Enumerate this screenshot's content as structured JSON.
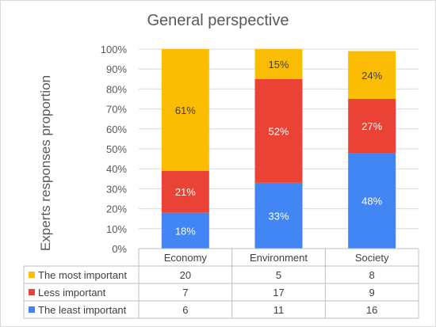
{
  "chart_data": {
    "type": "bar",
    "stacked": "percent",
    "title": "General perspective",
    "ylabel": "Experts responses proportion",
    "xlabel": "",
    "ylim": [
      0,
      100
    ],
    "yticks": [
      "0%",
      "10%",
      "20%",
      "30%",
      "40%",
      "50%",
      "60%",
      "70%",
      "80%",
      "90%",
      "100%"
    ],
    "grid": true,
    "categories": [
      "Economy",
      "Environment",
      "Society"
    ],
    "series": [
      {
        "name": "The least important",
        "color": "#4285f4",
        "counts": [
          6,
          11,
          16
        ],
        "percent": [
          18,
          33,
          48
        ],
        "labels": [
          "18%",
          "33%",
          "48%"
        ]
      },
      {
        "name": "Less important",
        "color": "#ea4335",
        "counts": [
          7,
          17,
          9
        ],
        "percent": [
          21,
          52,
          27
        ],
        "labels": [
          "21%",
          "52%",
          "27%"
        ]
      },
      {
        "name": "The most important",
        "color": "#fbbc04",
        "counts": [
          20,
          5,
          8
        ],
        "percent": [
          61,
          15,
          24
        ],
        "labels": [
          "61%",
          "15%",
          "24%"
        ]
      }
    ],
    "table_rows": [
      "The most important",
      "Less important",
      "The least important"
    ],
    "legend": "data-table"
  }
}
